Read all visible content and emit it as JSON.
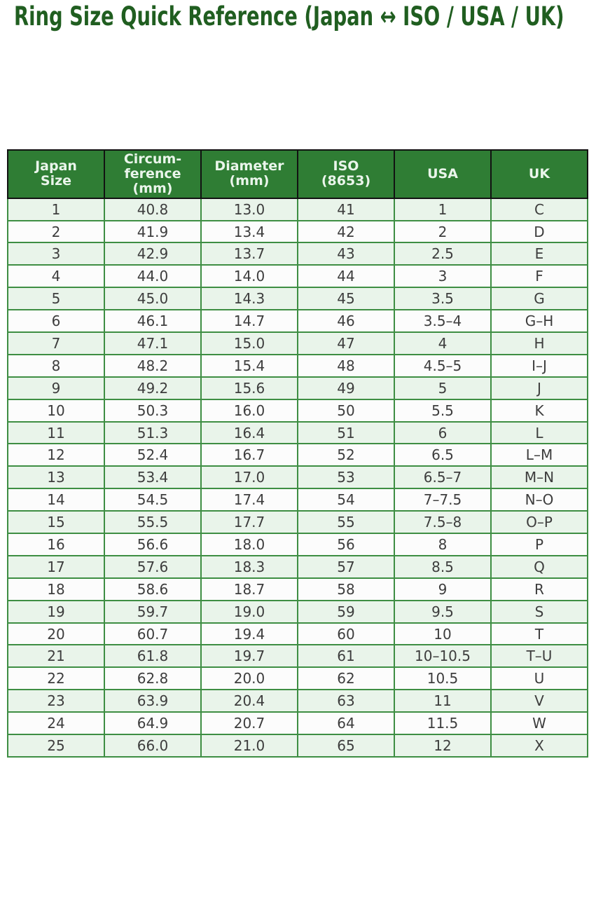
{
  "page": {
    "title": "Ring Size Quick Reference (Japan ↔ ISO / USA / UK)"
  },
  "colors": {
    "title_green": "#205E20",
    "header_bg": "#2F7D34",
    "header_text": "#EAF5EB",
    "row_alt_bg": "#E9F4EA",
    "row_bg": "#FCFCFC",
    "body_border": "#3E8E43",
    "header_border": "#121212",
    "cell_text": "#3D3D3D"
  },
  "chart_data": {
    "type": "table",
    "title": "Ring Size Quick Reference (Japan ↔ ISO / USA / UK)",
    "columns": [
      "Japan\nSize",
      "Circum-\nference\n(mm)",
      "Diameter\n(mm)",
      "ISO\n(8653)",
      "USA",
      "UK"
    ],
    "rows": [
      [
        "1",
        "40.8",
        "13.0",
        "41",
        "1",
        "C"
      ],
      [
        "2",
        "41.9",
        "13.4",
        "42",
        "2",
        "D"
      ],
      [
        "3",
        "42.9",
        "13.7",
        "43",
        "2.5",
        "E"
      ],
      [
        "4",
        "44.0",
        "14.0",
        "44",
        "3",
        "F"
      ],
      [
        "5",
        "45.0",
        "14.3",
        "45",
        "3.5",
        "G"
      ],
      [
        "6",
        "46.1",
        "14.7",
        "46",
        "3.5–4",
        "G–H"
      ],
      [
        "7",
        "47.1",
        "15.0",
        "47",
        "4",
        "H"
      ],
      [
        "8",
        "48.2",
        "15.4",
        "48",
        "4.5–5",
        "I–J"
      ],
      [
        "9",
        "49.2",
        "15.6",
        "49",
        "5",
        "J"
      ],
      [
        "10",
        "50.3",
        "16.0",
        "50",
        "5.5",
        "K"
      ],
      [
        "11",
        "51.3",
        "16.4",
        "51",
        "6",
        "L"
      ],
      [
        "12",
        "52.4",
        "16.7",
        "52",
        "6.5",
        "L–M"
      ],
      [
        "13",
        "53.4",
        "17.0",
        "53",
        "6.5–7",
        "M–N"
      ],
      [
        "14",
        "54.5",
        "17.4",
        "54",
        "7–7.5",
        "N–O"
      ],
      [
        "15",
        "55.5",
        "17.7",
        "55",
        "7.5–8",
        "O–P"
      ],
      [
        "16",
        "56.6",
        "18.0",
        "56",
        "8",
        "P"
      ],
      [
        "17",
        "57.6",
        "18.3",
        "57",
        "8.5",
        "Q"
      ],
      [
        "18",
        "58.6",
        "18.7",
        "58",
        "9",
        "R"
      ],
      [
        "19",
        "59.7",
        "19.0",
        "59",
        "9.5",
        "S"
      ],
      [
        "20",
        "60.7",
        "19.4",
        "60",
        "10",
        "T"
      ],
      [
        "21",
        "61.8",
        "19.7",
        "61",
        "10–10.5",
        "T–U"
      ],
      [
        "22",
        "62.8",
        "20.0",
        "62",
        "10.5",
        "U"
      ],
      [
        "23",
        "63.9",
        "20.4",
        "63",
        "11",
        "V"
      ],
      [
        "24",
        "64.9",
        "20.7",
        "64",
        "11.5",
        "W"
      ],
      [
        "25",
        "66.0",
        "21.0",
        "65",
        "12",
        "X"
      ]
    ]
  }
}
